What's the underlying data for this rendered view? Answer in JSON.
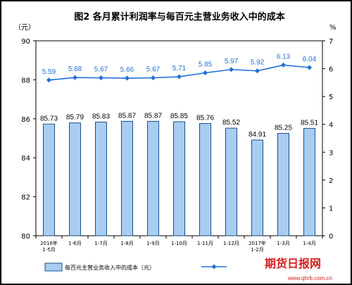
{
  "chart_data": {
    "type": "bar",
    "title": "图2  各月累计利润率与每百元主营业务收入中的成本",
    "left_unit": "（元）",
    "right_unit": "%",
    "categories": [
      "2016年\n1-5月",
      "1-6月",
      "1-7月",
      "1-8月",
      "1-9月",
      "1-10月",
      "1-11月",
      "1-12月",
      "2017年\n1-2月",
      "1-3月",
      "1-4月"
    ],
    "series": [
      {
        "name": "每百元主营业务收入中的成本（元）",
        "type": "bar",
        "axis": "left",
        "values": [
          85.73,
          85.79,
          85.83,
          85.87,
          85.87,
          85.85,
          85.76,
          85.52,
          84.91,
          85.25,
          85.51
        ]
      },
      {
        "name": "",
        "type": "line",
        "axis": "right",
        "values": [
          5.59,
          5.68,
          5.67,
          5.66,
          5.67,
          5.71,
          5.85,
          5.97,
          5.92,
          6.13,
          6.04
        ]
      }
    ],
    "ylim_left": [
      80,
      90
    ],
    "yticks_left": [
      80,
      82,
      84,
      86,
      88,
      90
    ],
    "ylim_right": [
      0,
      7
    ],
    "yticks_right": [
      0,
      1,
      2,
      3,
      4,
      5,
      6,
      7
    ],
    "colors": {
      "bar": "#a9cdf0",
      "bar_edge": "#1a4f8a",
      "line": "#1f6fd6"
    },
    "legend_position": "bottom"
  },
  "watermark": {
    "text": "期货日报网",
    "url": "www.qhrb.com.cn"
  }
}
